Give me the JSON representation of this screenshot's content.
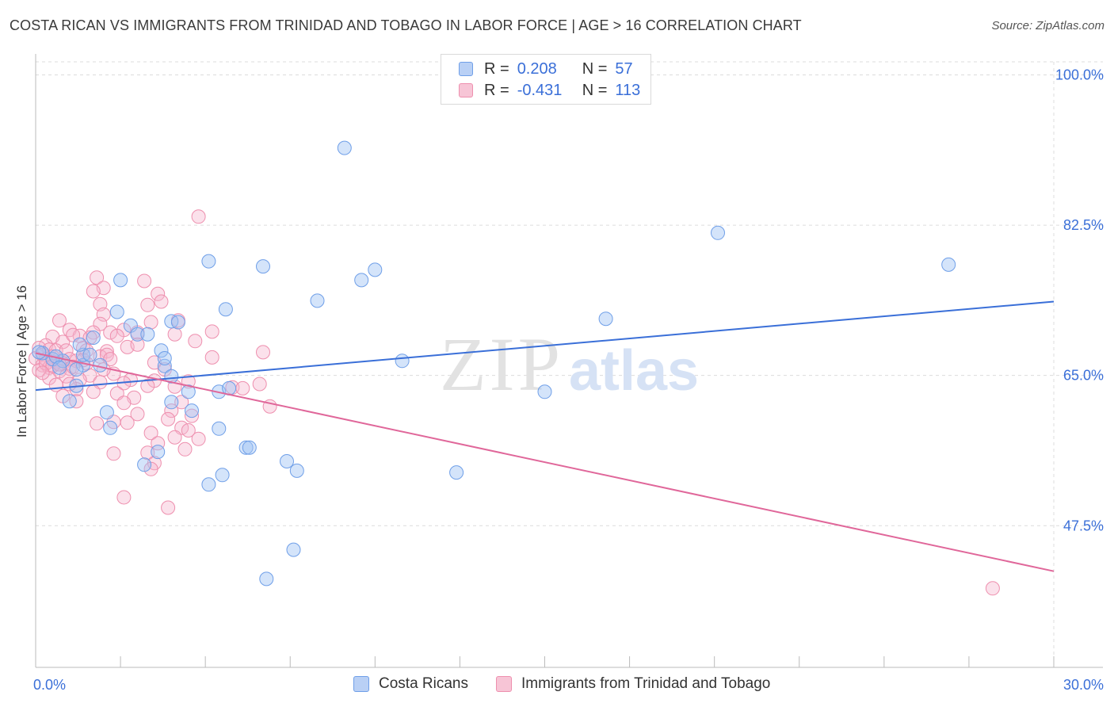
{
  "header": {
    "title": "COSTA RICAN VS IMMIGRANTS FROM TRINIDAD AND TOBAGO IN LABOR FORCE | AGE > 16 CORRELATION CHART",
    "source": "Source: ZipAtlas.com"
  },
  "watermark": {
    "zip": "ZIP",
    "atlas": "atlas"
  },
  "legend": {
    "r_label": "R =",
    "n_label": "N =",
    "series": [
      {
        "name": "Costa Ricans",
        "r": "0.208",
        "n": "57",
        "color": "#6f9fe8",
        "fill": "#b9d0f5"
      },
      {
        "name": "Immigrants from Trinidad and Tobago",
        "r": "-0.431",
        "n": "113",
        "color": "#ee8fae",
        "fill": "#f7c5d6"
      }
    ]
  },
  "chart_data": {
    "type": "scatter",
    "title": "COSTA RICAN VS IMMIGRANTS FROM TRINIDAD AND TOBAGO IN LABOR FORCE | AGE > 16 CORRELATION CHART",
    "xlabel": "",
    "ylabel": "In Labor Force | Age > 16",
    "xlim": [
      0,
      30
    ],
    "ylim": [
      31.0,
      103.0
    ],
    "x_tick_labels": [
      "0.0%",
      "30.0%"
    ],
    "y_ticks": [
      100.0,
      82.5,
      65.0,
      47.5
    ],
    "y_tick_labels": [
      "100.0%",
      "82.5%",
      "65.0%",
      "47.5%"
    ],
    "grid": true,
    "legend_position": "top-center",
    "series": [
      {
        "name": "Costa Ricans",
        "color": "#3a6fd8",
        "trend": {
          "x": [
            0,
            30
          ],
          "y": [
            63.3,
            73.6
          ]
        },
        "points": [
          [
            9.1,
            91.5
          ],
          [
            20.1,
            81.6
          ],
          [
            26.9,
            77.9
          ],
          [
            5.1,
            78.3
          ],
          [
            6.7,
            77.7
          ],
          [
            10.0,
            77.3
          ],
          [
            9.6,
            76.1
          ],
          [
            2.5,
            76.1
          ],
          [
            8.3,
            73.7
          ],
          [
            5.6,
            72.7
          ],
          [
            2.4,
            72.4
          ],
          [
            16.8,
            71.6
          ],
          [
            4.0,
            71.3
          ],
          [
            2.8,
            70.8
          ],
          [
            4.2,
            71.2
          ],
          [
            3.0,
            69.8
          ],
          [
            1.7,
            69.4
          ],
          [
            3.3,
            69.8
          ],
          [
            3.7,
            67.9
          ],
          [
            10.8,
            66.7
          ],
          [
            0.8,
            66.7
          ],
          [
            1.4,
            66.2
          ],
          [
            3.8,
            66.1
          ],
          [
            0.5,
            66.9
          ],
          [
            0.2,
            67.6
          ],
          [
            0.6,
            67.2
          ],
          [
            1.2,
            65.7
          ],
          [
            4.0,
            64.9
          ],
          [
            3.8,
            67.0
          ],
          [
            1.2,
            63.8
          ],
          [
            15.0,
            63.1
          ],
          [
            4.5,
            63.1
          ],
          [
            5.4,
            63.1
          ],
          [
            5.7,
            63.5
          ],
          [
            4.0,
            61.9
          ],
          [
            4.6,
            60.9
          ],
          [
            2.1,
            60.7
          ],
          [
            5.4,
            58.8
          ],
          [
            2.2,
            58.9
          ],
          [
            6.2,
            56.6
          ],
          [
            3.6,
            56.1
          ],
          [
            1.0,
            62.0
          ],
          [
            6.3,
            56.6
          ],
          [
            7.4,
            55.0
          ],
          [
            3.2,
            54.6
          ],
          [
            7.7,
            53.9
          ],
          [
            12.4,
            53.7
          ],
          [
            5.5,
            53.4
          ],
          [
            5.1,
            52.3
          ],
          [
            1.4,
            67.4
          ],
          [
            0.1,
            67.7
          ],
          [
            0.7,
            65.9
          ],
          [
            1.9,
            66.2
          ],
          [
            1.3,
            68.6
          ],
          [
            7.6,
            44.7
          ],
          [
            6.8,
            41.3
          ],
          [
            1.6,
            67.4
          ]
        ]
      },
      {
        "name": "Immigrants from Trinidad and Tobago",
        "color": "#e0679a",
        "trend": {
          "x": [
            0,
            30
          ],
          "y": [
            67.6,
            42.2
          ]
        },
        "points": [
          [
            4.8,
            83.5
          ],
          [
            1.8,
            76.4
          ],
          [
            3.2,
            76.0
          ],
          [
            2.0,
            75.2
          ],
          [
            1.7,
            74.8
          ],
          [
            3.6,
            74.5
          ],
          [
            1.9,
            73.3
          ],
          [
            3.3,
            73.2
          ],
          [
            2.0,
            72.1
          ],
          [
            4.2,
            71.4
          ],
          [
            1.9,
            71.0
          ],
          [
            3.4,
            71.2
          ],
          [
            1.0,
            70.3
          ],
          [
            2.2,
            70.0
          ],
          [
            0.7,
            71.4
          ],
          [
            5.2,
            70.1
          ],
          [
            2.6,
            70.3
          ],
          [
            1.7,
            70.0
          ],
          [
            3.0,
            70.0
          ],
          [
            2.4,
            69.6
          ],
          [
            4.1,
            69.8
          ],
          [
            0.5,
            69.5
          ],
          [
            1.3,
            69.6
          ],
          [
            1.6,
            69.4
          ],
          [
            4.7,
            69.0
          ],
          [
            0.8,
            68.9
          ],
          [
            1.1,
            69.7
          ],
          [
            2.7,
            68.3
          ],
          [
            1.4,
            68.2
          ],
          [
            0.3,
            68.5
          ],
          [
            0.1,
            68.2
          ],
          [
            0.4,
            68.0
          ],
          [
            0.6,
            67.9
          ],
          [
            0.9,
            67.9
          ],
          [
            1.5,
            67.9
          ],
          [
            2.1,
            67.8
          ],
          [
            0.2,
            67.4
          ],
          [
            0.5,
            67.2
          ],
          [
            0.0,
            67.0
          ],
          [
            0.3,
            66.9
          ],
          [
            1.0,
            66.9
          ],
          [
            1.9,
            67.2
          ],
          [
            0.6,
            66.5
          ],
          [
            1.2,
            66.7
          ],
          [
            0.2,
            66.2
          ],
          [
            0.8,
            66.4
          ],
          [
            2.1,
            67.4
          ],
          [
            3.5,
            66.5
          ],
          [
            1.5,
            66.4
          ],
          [
            0.4,
            65.9
          ],
          [
            1.0,
            65.8
          ],
          [
            0.1,
            65.6
          ],
          [
            0.7,
            65.5
          ],
          [
            3.8,
            65.7
          ],
          [
            5.2,
            67.1
          ],
          [
            6.7,
            67.7
          ],
          [
            2.3,
            65.2
          ],
          [
            1.6,
            65.0
          ],
          [
            0.9,
            64.9
          ],
          [
            0.4,
            64.7
          ],
          [
            3.5,
            64.4
          ],
          [
            1.3,
            64.5
          ],
          [
            2.8,
            64.5
          ],
          [
            6.6,
            64.0
          ],
          [
            1.9,
            64.2
          ],
          [
            4.5,
            64.3
          ],
          [
            2.6,
            64.1
          ],
          [
            0.6,
            63.9
          ],
          [
            4.1,
            63.7
          ],
          [
            1.2,
            63.4
          ],
          [
            1.7,
            63.1
          ],
          [
            2.4,
            62.9
          ],
          [
            0.8,
            62.6
          ],
          [
            2.9,
            62.4
          ],
          [
            5.8,
            63.6
          ],
          [
            1.2,
            62.0
          ],
          [
            2.6,
            61.8
          ],
          [
            4.3,
            61.9
          ],
          [
            4.0,
            60.9
          ],
          [
            6.9,
            61.4
          ],
          [
            3.0,
            60.5
          ],
          [
            4.6,
            60.3
          ],
          [
            3.9,
            59.9
          ],
          [
            2.3,
            59.6
          ],
          [
            1.8,
            59.4
          ],
          [
            2.7,
            59.5
          ],
          [
            4.3,
            58.9
          ],
          [
            4.5,
            58.6
          ],
          [
            3.4,
            58.3
          ],
          [
            4.1,
            57.8
          ],
          [
            3.6,
            57.1
          ],
          [
            4.8,
            57.6
          ],
          [
            3.3,
            56.0
          ],
          [
            4.4,
            56.4
          ],
          [
            2.3,
            55.9
          ],
          [
            3.5,
            54.8
          ],
          [
            3.4,
            54.1
          ],
          [
            2.6,
            50.8
          ],
          [
            3.9,
            49.6
          ],
          [
            28.2,
            40.2
          ],
          [
            0.3,
            66.4
          ],
          [
            0.5,
            66.1
          ],
          [
            0.7,
            66.3
          ],
          [
            1.4,
            66.8
          ],
          [
            2.0,
            65.7
          ],
          [
            0.2,
            65.3
          ],
          [
            3.0,
            68.6
          ],
          [
            3.7,
            73.6
          ],
          [
            3.3,
            63.8
          ],
          [
            1.0,
            64.0
          ],
          [
            6.1,
            63.5
          ],
          [
            2.2,
            66.9
          ],
          [
            1.1,
            66.0
          ]
        ]
      }
    ]
  }
}
